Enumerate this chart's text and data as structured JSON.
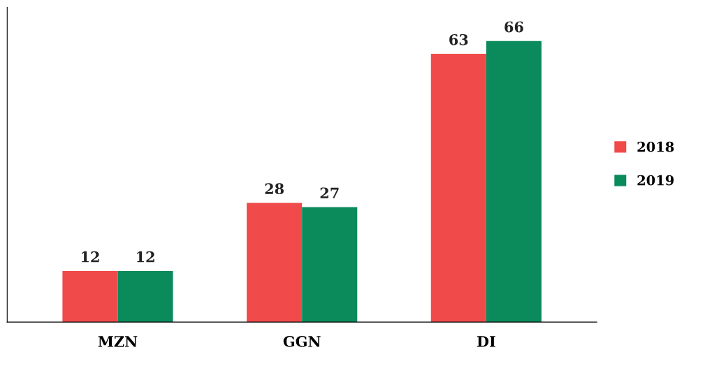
{
  "chart_data": {
    "type": "bar",
    "categories": [
      "MZN",
      "GGN",
      "DI"
    ],
    "series": [
      {
        "name": "2018",
        "color": "#f04a4a",
        "values": [
          12,
          28,
          63
        ]
      },
      {
        "name": "2019",
        "color": "#0b8a5c",
        "values": [
          12,
          27,
          66
        ]
      }
    ],
    "data_labels": true,
    "legend": "right",
    "grid": false,
    "tick_labels": "x"
  }
}
